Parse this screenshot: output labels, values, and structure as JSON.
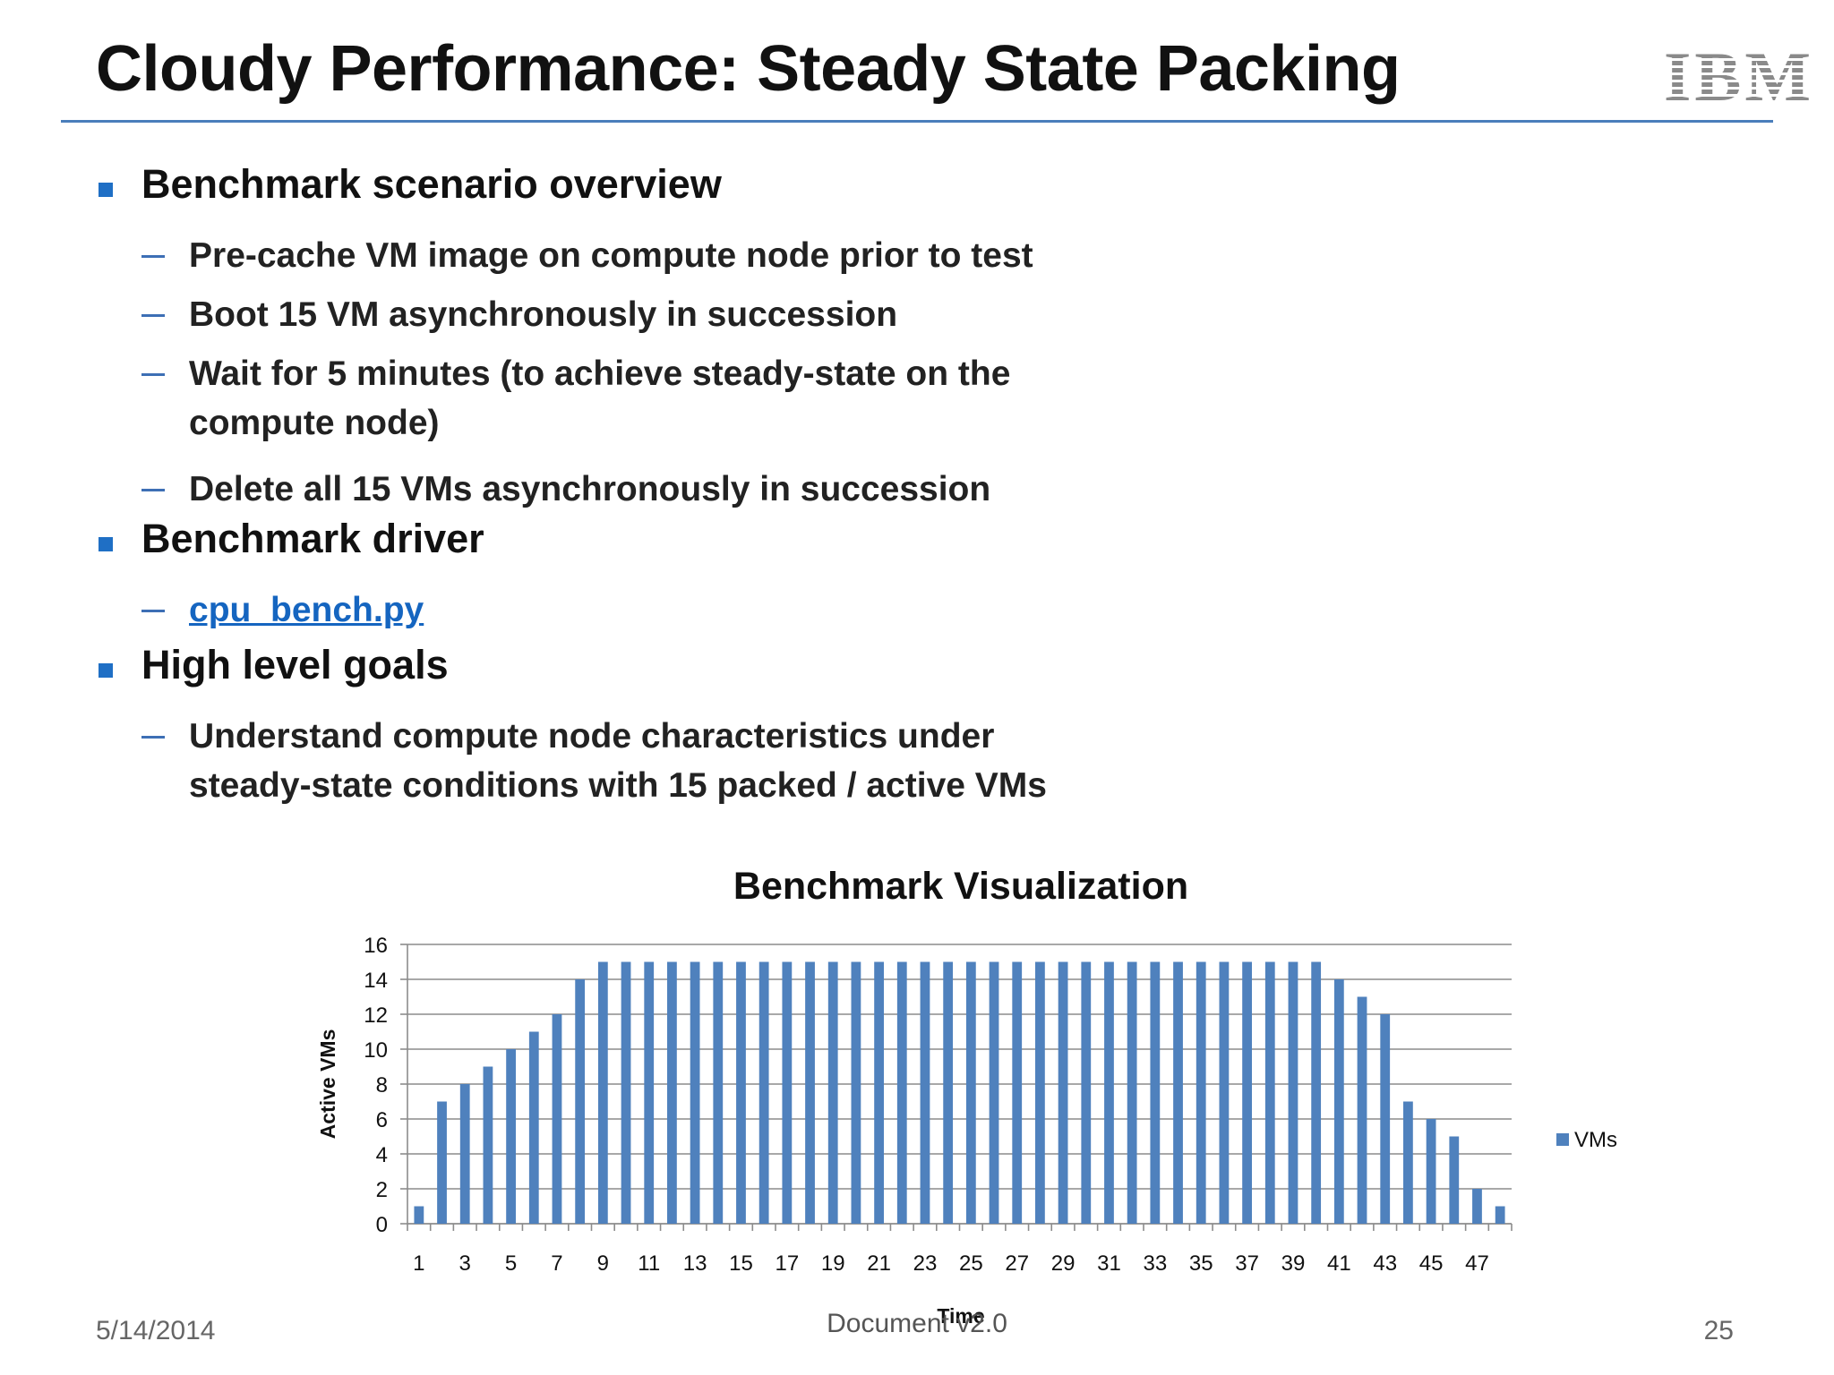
{
  "slide": {
    "title": "Cloudy Performance: Steady State Packing",
    "logo_text": "IBM",
    "date": "5/14/2014",
    "document": "Document v2.0",
    "page_number": "25",
    "accent_color": "#4a7ebb",
    "bullet_color": "#1f6fc5",
    "link_color": "#1565c0"
  },
  "sections": [
    {
      "heading": "Benchmark scenario overview",
      "items": [
        {
          "lines": [
            "Pre-cache VM image on compute node prior to test"
          ]
        },
        {
          "lines": [
            "Boot 15 VM asynchronously in succession"
          ]
        },
        {
          "lines": [
            "Wait for 5 minutes (to achieve steady-state on the",
            "compute node)"
          ]
        },
        {
          "lines": [
            "Delete all 15 VMs asynchronously in succession"
          ]
        }
      ]
    },
    {
      "heading": "Benchmark driver",
      "items": [
        {
          "lines": [
            "cpu_bench.py"
          ],
          "link": true
        }
      ]
    },
    {
      "heading": "High level goals",
      "items": [
        {
          "lines": [
            "Understand compute node characteristics under",
            "steady-state conditions with 15 packed / active VMs"
          ]
        }
      ]
    }
  ],
  "chart_data": {
    "type": "bar",
    "title": "Benchmark Visualization",
    "xlabel": "Time",
    "ylabel": "Active VMs",
    "ylim": [
      0,
      16
    ],
    "yticks": [
      0,
      2,
      4,
      6,
      8,
      10,
      12,
      14,
      16
    ],
    "grid": true,
    "legend_position": "right",
    "bar_color": "#4f81bd",
    "categories": [
      1,
      2,
      3,
      4,
      5,
      6,
      7,
      8,
      9,
      10,
      11,
      12,
      13,
      14,
      15,
      16,
      17,
      18,
      19,
      20,
      21,
      22,
      23,
      24,
      25,
      26,
      27,
      28,
      29,
      30,
      31,
      32,
      33,
      34,
      35,
      36,
      37,
      38,
      39,
      40,
      41,
      42,
      43,
      44,
      45,
      46,
      47,
      48
    ],
    "xtick_labels": [
      1,
      3,
      5,
      7,
      9,
      11,
      13,
      15,
      17,
      19,
      21,
      23,
      25,
      27,
      29,
      31,
      33,
      35,
      37,
      39,
      41,
      43,
      45,
      47
    ],
    "series": [
      {
        "name": "VMs",
        "values": [
          1,
          7,
          8,
          9,
          10,
          11,
          12,
          14,
          15,
          15,
          15,
          15,
          15,
          15,
          15,
          15,
          15,
          15,
          15,
          15,
          15,
          15,
          15,
          15,
          15,
          15,
          15,
          15,
          15,
          15,
          15,
          15,
          15,
          15,
          15,
          15,
          15,
          15,
          15,
          15,
          14,
          13,
          12,
          7,
          6,
          5,
          2,
          1
        ]
      }
    ]
  }
}
